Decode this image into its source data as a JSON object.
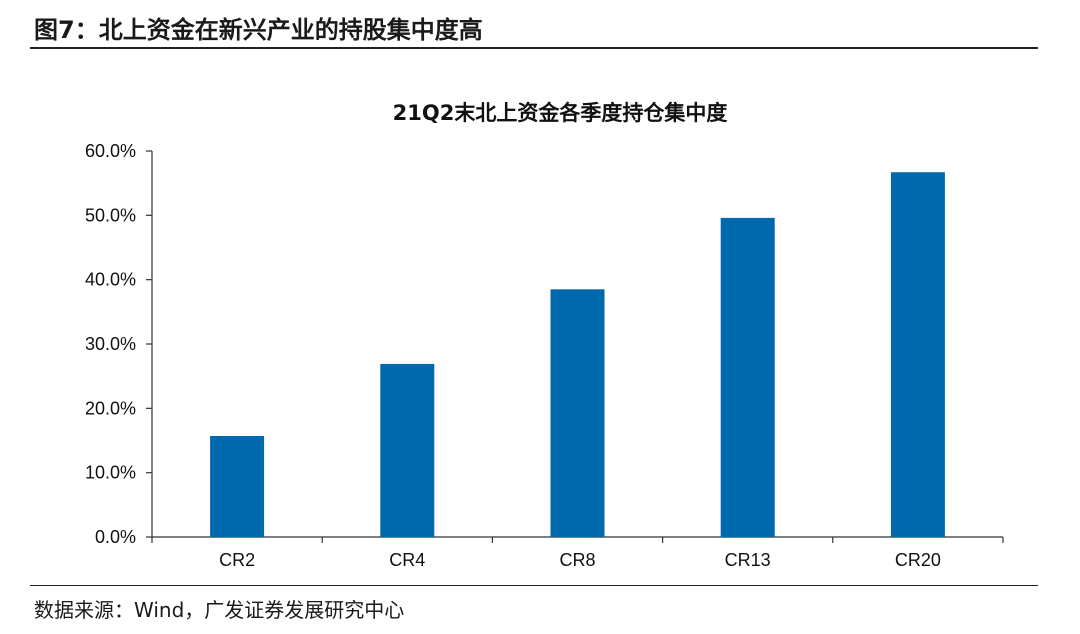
{
  "figure": {
    "title": "图7：北上资金在新兴产业的持股集中度高",
    "source": "数据来源：Wind，广发证券发展研究中心"
  },
  "chart_data": {
    "type": "bar",
    "title": "21Q2末北上资金各季度持仓集中度",
    "categories": [
      "CR2",
      "CR4",
      "CR8",
      "CR13",
      "CR20"
    ],
    "values": [
      15.7,
      26.9,
      38.5,
      49.6,
      56.7
    ],
    "ylim": [
      0,
      60
    ],
    "yticks": [
      0,
      10,
      20,
      30,
      40,
      50,
      60
    ],
    "ytick_labels": [
      "0.0%",
      "10.0%",
      "20.0%",
      "30.0%",
      "40.0%",
      "50.0%",
      "60.0%"
    ],
    "xlabel": "",
    "ylabel": "",
    "grid": false,
    "bar_color": "#0068AD"
  }
}
